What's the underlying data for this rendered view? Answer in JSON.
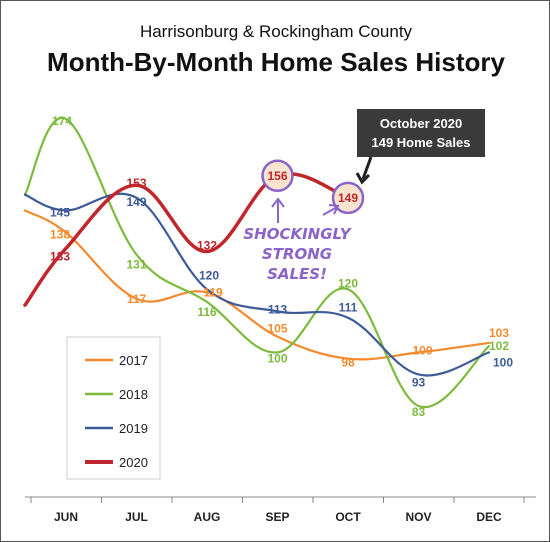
{
  "header": {
    "subtitle": "Harrisonburg & Rockingham County",
    "title": "Month-By-Month Home Sales History"
  },
  "callout": {
    "line1": "October 2020",
    "line2": "149 Home Sales"
  },
  "annotation": {
    "lines": [
      "SHOCKINGLY",
      "STRONG",
      "SALES!"
    ]
  },
  "colors": {
    "2017": "#f58a2e",
    "2018": "#7dbb3f",
    "2019": "#3d5a99",
    "2020": "#c0272d",
    "highlight": "#8a64c8",
    "callout_bg": "#3a3a3a"
  },
  "chart_data": {
    "type": "line",
    "categories": [
      "JUN",
      "JUL",
      "AUG",
      "SEP",
      "OCT",
      "NOV",
      "DEC"
    ],
    "ylim": [
      70,
      185
    ],
    "grid": false,
    "legend_position": "bottom-left",
    "series": [
      {
        "name": "2017",
        "values": [
          138,
          117,
          119,
          105,
          98,
          100,
          103
        ]
      },
      {
        "name": "2018",
        "values": [
          174,
          131,
          116,
          100,
          120,
          83,
          102
        ]
      },
      {
        "name": "2019",
        "values": [
          145,
          149,
          120,
          113,
          111,
          93,
          100
        ]
      },
      {
        "name": "2020",
        "values": [
          133,
          153,
          132,
          156,
          149,
          null,
          null
        ]
      }
    ]
  }
}
